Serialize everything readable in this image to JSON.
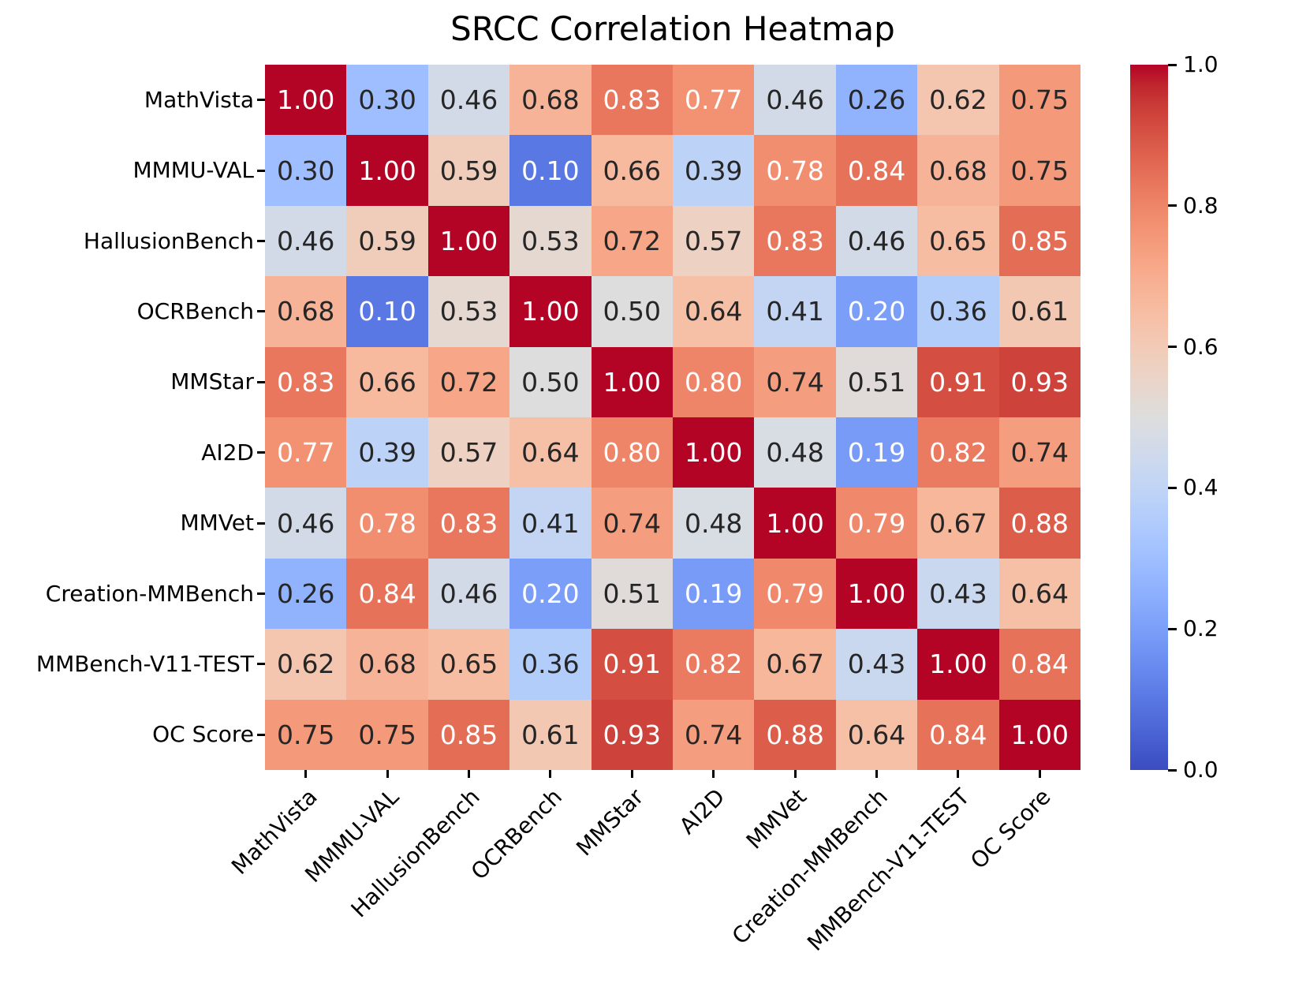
{
  "title": "SRCC Correlation Heatmap",
  "chart_data": {
    "type": "heatmap",
    "title": "SRCC Correlation Heatmap",
    "row_labels": [
      "MathVista",
      "MMMU-VAL",
      "HallusionBench",
      "OCRBench",
      "MMStar",
      "AI2D",
      "MMVet",
      "Creation-MMBench",
      "MMBench-V11-TEST",
      "OC Score"
    ],
    "col_labels": [
      "MathVista",
      "MMMU-VAL",
      "HallusionBench",
      "OCRBench",
      "MMStar",
      "AI2D",
      "MMVet",
      "Creation-MMBench",
      "MMBench-V11-TEST",
      "OC Score"
    ],
    "matrix": [
      [
        1.0,
        0.3,
        0.46,
        0.68,
        0.83,
        0.77,
        0.46,
        0.26,
        0.62,
        0.75
      ],
      [
        0.3,
        1.0,
        0.59,
        0.1,
        0.66,
        0.39,
        0.78,
        0.84,
        0.68,
        0.75
      ],
      [
        0.46,
        0.59,
        1.0,
        0.53,
        0.72,
        0.57,
        0.83,
        0.46,
        0.65,
        0.85
      ],
      [
        0.68,
        0.1,
        0.53,
        1.0,
        0.5,
        0.64,
        0.41,
        0.2,
        0.36,
        0.61
      ],
      [
        0.83,
        0.66,
        0.72,
        0.5,
        1.0,
        0.8,
        0.74,
        0.51,
        0.91,
        0.93
      ],
      [
        0.77,
        0.39,
        0.57,
        0.64,
        0.8,
        1.0,
        0.48,
        0.19,
        0.82,
        0.74
      ],
      [
        0.46,
        0.78,
        0.83,
        0.41,
        0.74,
        0.48,
        1.0,
        0.79,
        0.67,
        0.88
      ],
      [
        0.26,
        0.84,
        0.46,
        0.2,
        0.51,
        0.19,
        0.79,
        1.0,
        0.43,
        0.64
      ],
      [
        0.62,
        0.68,
        0.65,
        0.36,
        0.91,
        0.82,
        0.67,
        0.43,
        1.0,
        0.84
      ],
      [
        0.75,
        0.75,
        0.85,
        0.61,
        0.93,
        0.74,
        0.88,
        0.64,
        0.84,
        1.0
      ]
    ],
    "value_format": "2dp",
    "vmin": 0.0,
    "vmax": 1.0,
    "colormap": "coolwarm",
    "colormap_colors": {
      "low": "#3b4cc0",
      "mid": "#dddddd",
      "high": "#b40426"
    },
    "annotation_text_colors": {
      "dark": "#262626",
      "light": "#ffffff"
    },
    "grid_lines": false,
    "legend": null,
    "colorbar": {
      "position": "right",
      "ticks": [
        1.0,
        0.8,
        0.6,
        0.4,
        0.2,
        0.0
      ],
      "tick_labels": [
        "1.0",
        "0.8",
        "0.6",
        "0.4",
        "0.2",
        "0.0"
      ]
    }
  }
}
